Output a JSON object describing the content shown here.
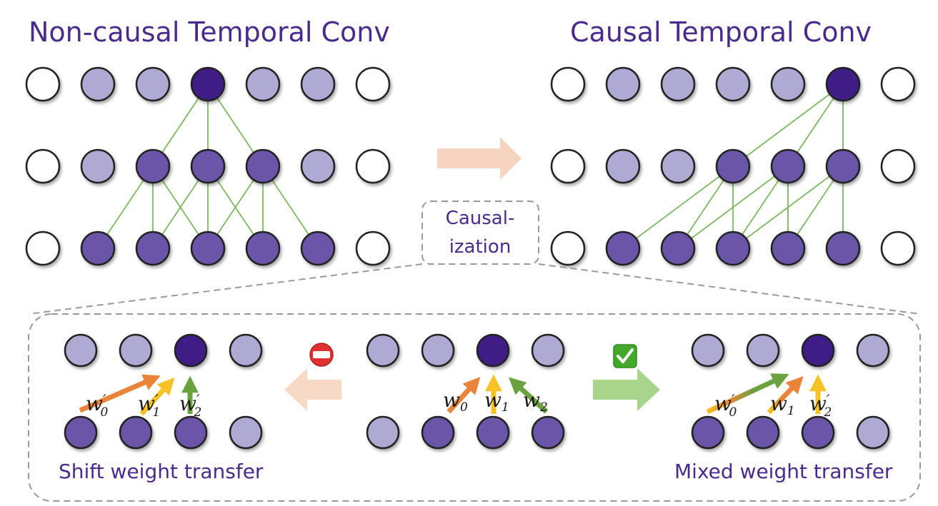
{
  "titles": {
    "left": "Non-causal Temporal Conv",
    "right": "Causal Temporal Conv"
  },
  "causalization_label": {
    "line1": "Causal-",
    "line2": "ization"
  },
  "captions": {
    "shift": "Shift weight transfer",
    "mixed": "Mixed weight transfer"
  },
  "weights": {
    "w": "w",
    "prime": "′",
    "sub0": "0",
    "sub1": "1",
    "sub2": "2"
  },
  "icons": {
    "forbidden": "no-entry-icon",
    "check": "check-mark-icon"
  },
  "colors": {
    "node_dark": "#3f1f86",
    "node_mid": "#6a55a8",
    "node_light": "#aeaad3",
    "edge": "#7bb85f",
    "arrow_orange": "#ea8438",
    "arrow_yellow": "#f6c225",
    "arrow_green": "#6aa23f",
    "title": "#4a2a8c"
  },
  "diagrams": {
    "noncausal": {
      "rows": [
        [
          "white",
          "light",
          "light",
          "dark",
          "light",
          "light",
          "white"
        ],
        [
          "white",
          "light",
          "mid",
          "mid",
          "mid",
          "light",
          "white"
        ],
        [
          "white",
          "mid",
          "mid",
          "mid",
          "mid",
          "mid",
          "white"
        ]
      ]
    },
    "causal": {
      "rows": [
        [
          "white",
          "light",
          "light",
          "light",
          "light",
          "dark",
          "white"
        ],
        [
          "white",
          "light",
          "light",
          "mid",
          "mid",
          "mid",
          "white"
        ],
        [
          "white",
          "mid",
          "mid",
          "mid",
          "mid",
          "mid",
          "white"
        ]
      ]
    },
    "shift": {
      "top": [
        "light",
        "light",
        "dark",
        "light"
      ],
      "bottom": [
        "mid",
        "mid",
        "mid",
        "light"
      ]
    },
    "middle": {
      "top": [
        "light",
        "light",
        "dark",
        "light"
      ],
      "bottom": [
        "light",
        "mid",
        "mid",
        "mid"
      ]
    },
    "mixed": {
      "top": [
        "light",
        "light",
        "dark",
        "light"
      ],
      "bottom": [
        "mid",
        "mid",
        "mid",
        "light"
      ]
    }
  }
}
